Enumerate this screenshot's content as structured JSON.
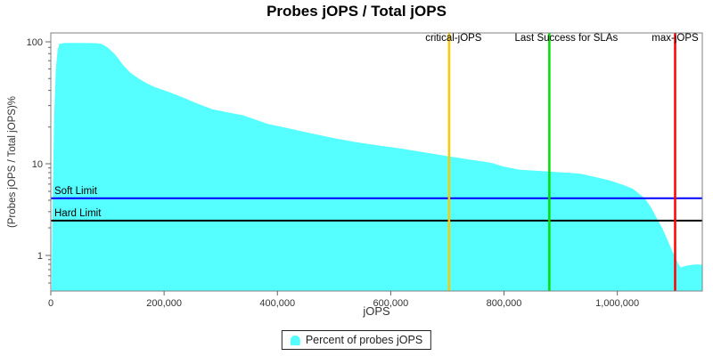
{
  "title": "Probes jOPS / Total jOPS",
  "legend": {
    "items": [
      {
        "label": "Percent of probes jOPS",
        "color": "#55FFFF"
      }
    ]
  },
  "colors": {
    "series_fill": "#55FFFF",
    "frame": "#808080",
    "tick": "#666666",
    "text": "#333333",
    "label_text": "#000000"
  },
  "chart_data": {
    "type": "area",
    "title": "Probes jOPS / Total jOPS",
    "xlabel": "jOPS",
    "ylabel": "(Probes jOPS / Total jOPS)%",
    "xlim": [
      0,
      1150000
    ],
    "ylim": [
      0.41,
      118
    ],
    "yscale": "log",
    "grid": false,
    "legend_position": "bottom-center",
    "x_ticks": [
      {
        "value": 0,
        "label": "0"
      },
      {
        "value": 200000,
        "label": "200,000"
      },
      {
        "value": 400000,
        "label": "400,000"
      },
      {
        "value": 600000,
        "label": "600,000"
      },
      {
        "value": 800000,
        "label": "800,000"
      },
      {
        "value": 1000000,
        "label": "1,000,000"
      }
    ],
    "y_ticks": [
      {
        "value": 100,
        "label": "100"
      },
      {
        "value": 10,
        "label": "10"
      },
      {
        "value": 1,
        "label": "1"
      }
    ],
    "series": [
      {
        "name": "Percent of probes jOPS",
        "color": "#55FFFF",
        "points": [
          [
            1500,
            0.42
          ],
          [
            3000,
            3
          ],
          [
            6000,
            25
          ],
          [
            9000,
            60
          ],
          [
            12000,
            85
          ],
          [
            15000,
            96
          ],
          [
            25000,
            98
          ],
          [
            50000,
            98
          ],
          [
            80000,
            97.5
          ],
          [
            90000,
            96
          ],
          [
            100000,
            90
          ],
          [
            112000,
            80
          ],
          [
            120000,
            72
          ],
          [
            127000,
            65
          ],
          [
            140000,
            56
          ],
          [
            155000,
            50
          ],
          [
            170000,
            45.5
          ],
          [
            181000,
            43
          ],
          [
            210000,
            38.5
          ],
          [
            233000,
            35
          ],
          [
            260000,
            31
          ],
          [
            285000,
            28
          ],
          [
            310000,
            26.5
          ],
          [
            339000,
            25
          ],
          [
            383000,
            21.2
          ],
          [
            420000,
            19.5
          ],
          [
            461000,
            17.7
          ],
          [
            500000,
            16.2
          ],
          [
            540000,
            15
          ],
          [
            580000,
            14.1
          ],
          [
            619000,
            13.3
          ],
          [
            660000,
            12.4
          ],
          [
            698000,
            11.6
          ],
          [
            740000,
            10.8
          ],
          [
            776000,
            10.2
          ],
          [
            800000,
            9.3
          ],
          [
            828000,
            8.6
          ],
          [
            855000,
            8.4
          ],
          [
            882000,
            8.2
          ],
          [
            910000,
            8.0
          ],
          [
            934000,
            7.8
          ],
          [
            960000,
            7.2
          ],
          [
            986000,
            6.6
          ],
          [
            1013000,
            5.8
          ],
          [
            1028000,
            5.3
          ],
          [
            1049000,
            4.15
          ],
          [
            1060000,
            3.3
          ],
          [
            1071000,
            2.45
          ],
          [
            1079000,
            2.0
          ],
          [
            1087000,
            1.55
          ],
          [
            1096000,
            1.15
          ],
          [
            1102000,
            0.97
          ],
          [
            1108000,
            0.8
          ],
          [
            1112000,
            0.74
          ],
          [
            1118000,
            0.76
          ],
          [
            1125000,
            0.78
          ],
          [
            1140000,
            0.8
          ],
          [
            1150000,
            0.79
          ]
        ]
      }
    ],
    "markers": {
      "vertical": [
        {
          "name": "critical-jops",
          "label": "critical-jOPS",
          "value": 703000,
          "color": "#FFC800"
        },
        {
          "name": "last-success-slas",
          "label": "Last Success for SLAs",
          "value": 880000,
          "color": "#00DF00"
        },
        {
          "name": "max-jops",
          "label": "max-jOPS",
          "value": 1102000,
          "color": "#FF0000"
        }
      ],
      "horizontal": [
        {
          "name": "soft-limit",
          "label": "Soft Limit",
          "value": 4.2,
          "color": "#0000FF"
        },
        {
          "name": "hard-limit",
          "label": "Hard Limit",
          "value": 2.4,
          "color": "#000000"
        }
      ]
    }
  }
}
